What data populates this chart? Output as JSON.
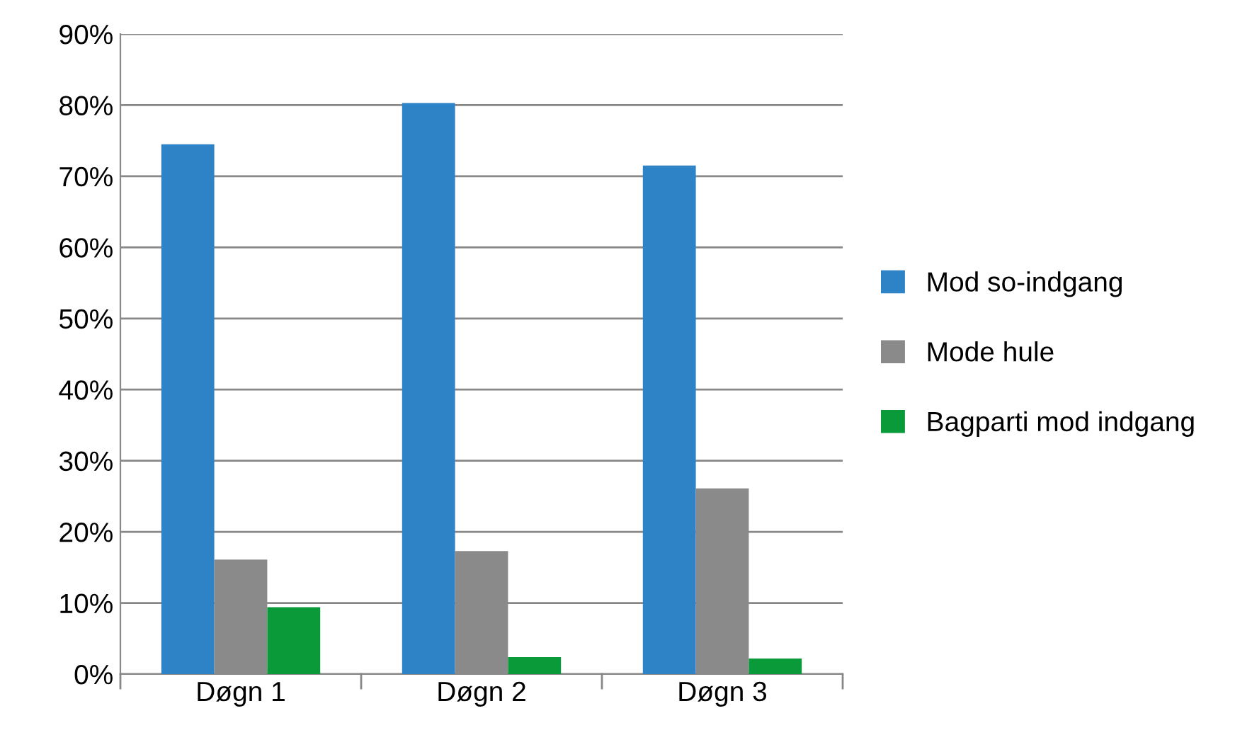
{
  "chart_data": {
    "type": "bar",
    "categories": [
      "Døgn 1",
      "Døgn 2",
      "Døgn 3"
    ],
    "series": [
      {
        "name": "Mod so-indgang",
        "color": "#2e83c6",
        "values": [
          74.5,
          80.3,
          71.5
        ]
      },
      {
        "name": "Mode hule",
        "color": "#8a8a8a",
        "values": [
          16.1,
          17.3,
          26.1
        ]
      },
      {
        "name": "Bagparti mod indgang",
        "color": "#0a9a3a",
        "values": [
          9.4,
          2.4,
          2.2
        ]
      }
    ],
    "ylim": [
      0,
      90
    ],
    "yticks": [
      {
        "value": 0,
        "label": "0%"
      },
      {
        "value": 10,
        "label": "10%"
      },
      {
        "value": 20,
        "label": "20%"
      },
      {
        "value": 30,
        "label": "30%"
      },
      {
        "value": 40,
        "label": "40%"
      },
      {
        "value": 50,
        "label": "50%"
      },
      {
        "value": 60,
        "label": "60%"
      },
      {
        "value": 70,
        "label": "70%"
      },
      {
        "value": 80,
        "label": "80%"
      },
      {
        "value": 90,
        "label": "90%"
      }
    ],
    "grid": "y",
    "legend": "right"
  }
}
